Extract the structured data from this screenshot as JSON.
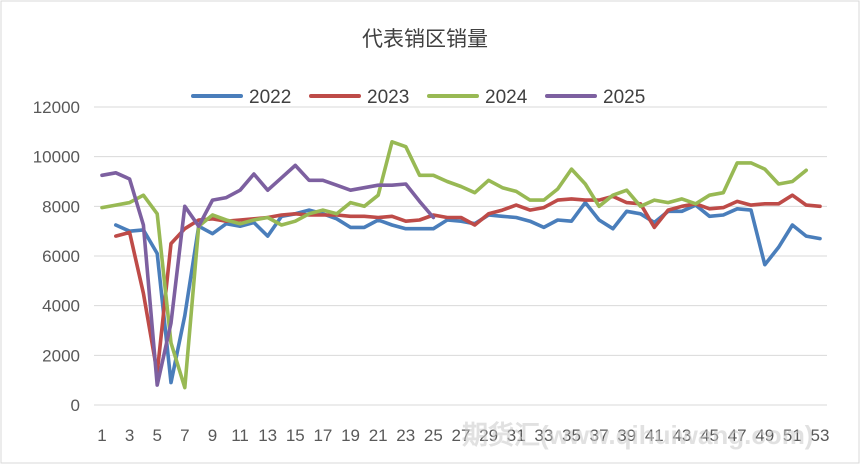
{
  "chart_data": {
    "type": "line",
    "title": "代表销区销量",
    "xlabel": "",
    "ylabel": "",
    "ylim": [
      0,
      12000
    ],
    "yticks": [
      0,
      2000,
      4000,
      6000,
      8000,
      10000,
      12000
    ],
    "xlim": [
      1,
      53
    ],
    "xticks": [
      1,
      3,
      5,
      7,
      9,
      11,
      13,
      15,
      17,
      19,
      21,
      23,
      25,
      27,
      29,
      31,
      33,
      35,
      37,
      39,
      41,
      43,
      45,
      47,
      49,
      51,
      53
    ],
    "grid": "horizontal",
    "legend_position": "top",
    "series": [
      {
        "name": "2022",
        "color": "#4a7ebb",
        "points": [
          [
            2,
            7250
          ],
          [
            3,
            7000
          ],
          [
            4,
            7050
          ],
          [
            5,
            6100
          ],
          [
            6,
            900
          ],
          [
            7,
            3600
          ],
          [
            8,
            7200
          ],
          [
            9,
            6900
          ],
          [
            10,
            7300
          ],
          [
            11,
            7200
          ],
          [
            12,
            7350
          ],
          [
            13,
            6800
          ],
          [
            14,
            7600
          ],
          [
            15,
            7700
          ],
          [
            16,
            7850
          ],
          [
            17,
            7700
          ],
          [
            18,
            7500
          ],
          [
            19,
            7150
          ],
          [
            20,
            7150
          ],
          [
            21,
            7450
          ],
          [
            22,
            7250
          ],
          [
            23,
            7100
          ],
          [
            24,
            7100
          ],
          [
            25,
            7100
          ],
          [
            26,
            7450
          ],
          [
            27,
            7400
          ],
          [
            28,
            7300
          ],
          [
            29,
            7650
          ],
          [
            30,
            7600
          ],
          [
            31,
            7550
          ],
          [
            32,
            7400
          ],
          [
            33,
            7150
          ],
          [
            34,
            7450
          ],
          [
            35,
            7400
          ],
          [
            36,
            8150
          ],
          [
            37,
            7450
          ],
          [
            38,
            7100
          ],
          [
            39,
            7800
          ],
          [
            40,
            7700
          ],
          [
            41,
            7350
          ],
          [
            42,
            7800
          ],
          [
            43,
            7800
          ],
          [
            44,
            8050
          ],
          [
            45,
            7600
          ],
          [
            46,
            7650
          ],
          [
            47,
            7900
          ],
          [
            48,
            7850
          ],
          [
            49,
            5650
          ],
          [
            50,
            6350
          ],
          [
            51,
            7250
          ],
          [
            52,
            6800
          ],
          [
            53,
            6700
          ]
        ]
      },
      {
        "name": "2023",
        "color": "#be4b48",
        "points": [
          [
            2,
            6800
          ],
          [
            3,
            6950
          ],
          [
            4,
            4500
          ],
          [
            5,
            1300
          ],
          [
            6,
            6500
          ],
          [
            7,
            7100
          ],
          [
            8,
            7450
          ],
          [
            9,
            7500
          ],
          [
            10,
            7400
          ],
          [
            11,
            7450
          ],
          [
            12,
            7500
          ],
          [
            13,
            7550
          ],
          [
            14,
            7650
          ],
          [
            15,
            7700
          ],
          [
            16,
            7650
          ],
          [
            17,
            7650
          ],
          [
            18,
            7650
          ],
          [
            19,
            7600
          ],
          [
            20,
            7600
          ],
          [
            21,
            7550
          ],
          [
            22,
            7600
          ],
          [
            23,
            7400
          ],
          [
            24,
            7450
          ],
          [
            25,
            7650
          ],
          [
            26,
            7550
          ],
          [
            27,
            7550
          ],
          [
            28,
            7250
          ],
          [
            29,
            7700
          ],
          [
            30,
            7850
          ],
          [
            31,
            8050
          ],
          [
            32,
            7850
          ],
          [
            33,
            7950
          ],
          [
            34,
            8250
          ],
          [
            35,
            8300
          ],
          [
            36,
            8250
          ],
          [
            37,
            8250
          ],
          [
            38,
            8400
          ],
          [
            39,
            8150
          ],
          [
            40,
            8100
          ],
          [
            41,
            7150
          ],
          [
            42,
            7850
          ],
          [
            43,
            8000
          ],
          [
            44,
            8100
          ],
          [
            45,
            7900
          ],
          [
            46,
            7950
          ],
          [
            47,
            8200
          ],
          [
            48,
            8050
          ],
          [
            49,
            8100
          ],
          [
            50,
            8100
          ],
          [
            51,
            8450
          ],
          [
            52,
            8050
          ],
          [
            53,
            8000
          ]
        ]
      },
      {
        "name": "2024",
        "color": "#98b954",
        "points": [
          [
            1,
            7950
          ],
          [
            2,
            8050
          ],
          [
            3,
            8150
          ],
          [
            4,
            8450
          ],
          [
            5,
            7700
          ],
          [
            6,
            2500
          ],
          [
            7,
            700
          ],
          [
            8,
            7200
          ],
          [
            9,
            7650
          ],
          [
            10,
            7450
          ],
          [
            11,
            7300
          ],
          [
            12,
            7450
          ],
          [
            13,
            7550
          ],
          [
            14,
            7250
          ],
          [
            15,
            7400
          ],
          [
            16,
            7700
          ],
          [
            17,
            7850
          ],
          [
            18,
            7700
          ],
          [
            19,
            8150
          ],
          [
            20,
            8000
          ],
          [
            21,
            8450
          ],
          [
            22,
            10600
          ],
          [
            23,
            10400
          ],
          [
            24,
            9250
          ],
          [
            25,
            9250
          ],
          [
            26,
            9000
          ],
          [
            27,
            8800
          ],
          [
            28,
            8550
          ],
          [
            29,
            9050
          ],
          [
            30,
            8750
          ],
          [
            31,
            8600
          ],
          [
            32,
            8250
          ],
          [
            33,
            8250
          ],
          [
            34,
            8700
          ],
          [
            35,
            9500
          ],
          [
            36,
            8900
          ],
          [
            37,
            8000
          ],
          [
            38,
            8450
          ],
          [
            39,
            8650
          ],
          [
            40,
            8000
          ],
          [
            41,
            8250
          ],
          [
            42,
            8150
          ],
          [
            43,
            8300
          ],
          [
            44,
            8100
          ],
          [
            45,
            8450
          ],
          [
            46,
            8550
          ],
          [
            47,
            9750
          ],
          [
            48,
            9750
          ],
          [
            49,
            9500
          ],
          [
            50,
            8900
          ],
          [
            51,
            9000
          ],
          [
            52,
            9450
          ]
        ]
      },
      {
        "name": "2025",
        "color": "#7d60a0",
        "points": [
          [
            1,
            9250
          ],
          [
            2,
            9350
          ],
          [
            3,
            9100
          ],
          [
            4,
            7250
          ],
          [
            5,
            800
          ],
          [
            6,
            3300
          ],
          [
            7,
            8000
          ],
          [
            8,
            7200
          ],
          [
            9,
            8250
          ],
          [
            10,
            8350
          ],
          [
            11,
            8650
          ],
          [
            12,
            9300
          ],
          [
            13,
            8650
          ],
          [
            14,
            9150
          ],
          [
            15,
            9650
          ],
          [
            16,
            9050
          ],
          [
            17,
            9050
          ],
          [
            18,
            8850
          ],
          [
            19,
            8650
          ],
          [
            20,
            8750
          ],
          [
            21,
            8850
          ],
          [
            22,
            8850
          ],
          [
            23,
            8900
          ],
          [
            24,
            8200
          ],
          [
            25,
            7550
          ]
        ]
      }
    ],
    "watermark": "期货汇(www.qihuiwang.com)"
  }
}
